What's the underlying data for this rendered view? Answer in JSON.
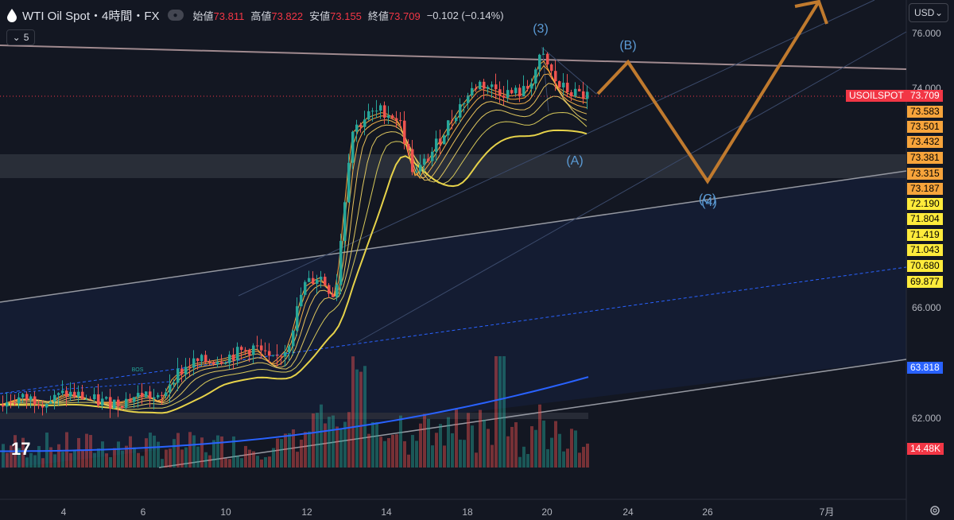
{
  "header": {
    "title": "WTI Oil Spot・4時間・FX",
    "open_label": "始値",
    "open": "73.811",
    "high_label": "高値",
    "high": "73.822",
    "low_label": "安値",
    "low": "73.155",
    "close_label": "終値",
    "close": "73.709",
    "change": "−0.102 (−0.14%)",
    "collapse_count": "5",
    "currency": "USD"
  },
  "symbol_tag": "USOILSPOT",
  "price_tags": [
    {
      "value": "73.709",
      "color": "#f23645",
      "text_color": "#ffffff"
    },
    {
      "value": "73.583",
      "color": "#f7a43b",
      "text_color": "#000000"
    },
    {
      "value": "73.501",
      "color": "#f7a43b",
      "text_color": "#000000"
    },
    {
      "value": "73.432",
      "color": "#f7a43b",
      "text_color": "#000000"
    },
    {
      "value": "73.381",
      "color": "#f7a43b",
      "text_color": "#000000"
    },
    {
      "value": "73.315",
      "color": "#f7a43b",
      "text_color": "#000000"
    },
    {
      "value": "73.187",
      "color": "#f7a43b",
      "text_color": "#000000"
    },
    {
      "value": "72.190",
      "color": "#ffeb3b",
      "text_color": "#000000"
    },
    {
      "value": "71.804",
      "color": "#ffeb3b",
      "text_color": "#000000"
    },
    {
      "value": "71.419",
      "color": "#ffeb3b",
      "text_color": "#000000"
    },
    {
      "value": "71.043",
      "color": "#ffeb3b",
      "text_color": "#000000"
    },
    {
      "value": "70.680",
      "color": "#ffeb3b",
      "text_color": "#000000"
    },
    {
      "value": "69.877",
      "color": "#ffeb3b",
      "text_color": "#000000"
    },
    {
      "value": "63.818",
      "color": "#2962ff",
      "text_color": "#ffffff"
    },
    {
      "value": "14.48K",
      "color": "#f23645",
      "text_color": "#ffffff"
    }
  ],
  "chart_data": {
    "type": "candlestick",
    "y_ticks": [
      "76.000",
      "74.000",
      "66.000",
      "62.000"
    ],
    "x_ticks": [
      "4",
      "6",
      "10",
      "12",
      "14",
      "18",
      "20",
      "24",
      "26",
      "7月"
    ],
    "ylim": [
      60.0,
      77.0
    ],
    "annotations": [
      "(3)",
      "(B)",
      "(A)",
      "(C)",
      "(4)",
      "BOS"
    ],
    "colors": {
      "up": "#26a69a",
      "down": "#ef5350",
      "arrow": "#c07a2e"
    }
  }
}
